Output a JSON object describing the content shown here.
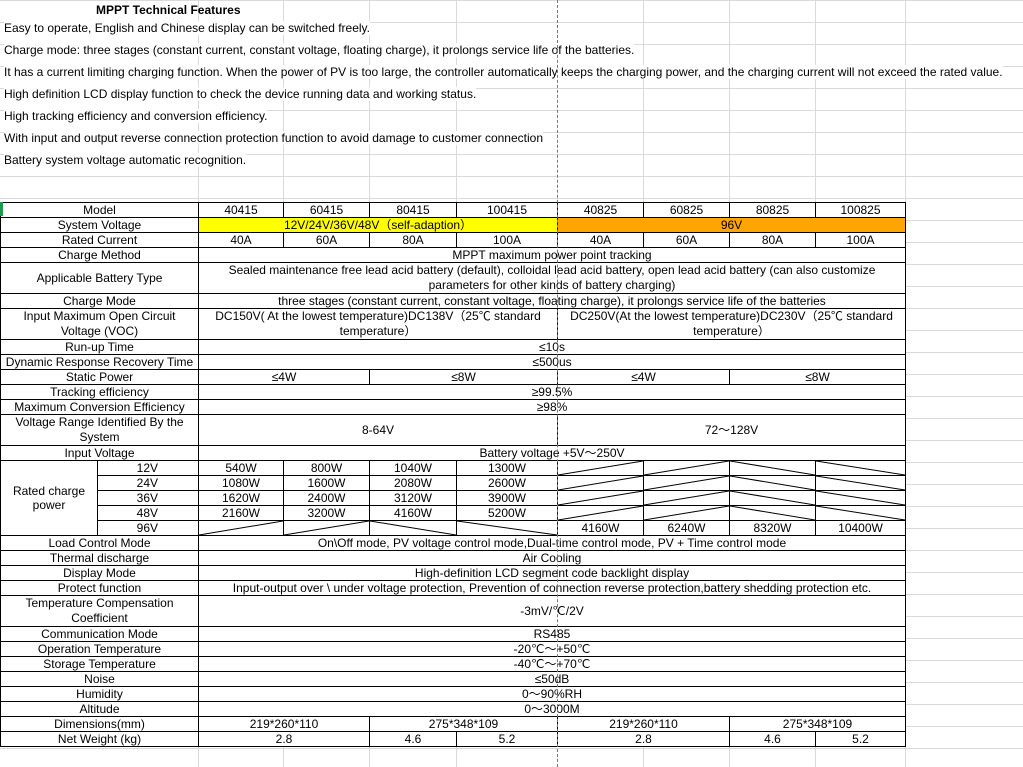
{
  "title": "MPPT Technical Features",
  "intro": [
    "Easy to operate, English and Chinese display can be switched freely.",
    "Charge mode: three stages (constant current, constant voltage, floating charge), it prolongs service life of the batteries.",
    "It has a current limiting charging function. When the power of PV is too large, the controller automatically keeps the charging power, and the charging current will not exceed the rated value.",
    "High definition LCD display function to check the device running data and working status.",
    "High tracking efficiency and conversion efficiency.",
    " With input and output reverse connection protection function to avoid damage to customer connection",
    "Battery system voltage automatic recognition."
  ],
  "colors": {
    "yellow": "#ffff00",
    "orange": "#ffa500"
  },
  "rows": [
    {
      "label": "Model",
      "cells": [
        [
          "40415",
          1
        ],
        [
          "60415",
          1
        ],
        [
          "80415",
          1
        ],
        [
          "100415",
          1
        ],
        [
          "40825",
          1
        ],
        [
          "60825",
          1
        ],
        [
          "80825",
          1
        ],
        [
          "100825",
          1
        ]
      ]
    },
    {
      "label": "System Voltage",
      "cells": [
        [
          "12V/24V/36V/48V（self-adaption）",
          4,
          "yellow"
        ],
        [
          "96V",
          4,
          "orange"
        ]
      ]
    },
    {
      "label": "Rated Current",
      "cells": [
        [
          "40A",
          1
        ],
        [
          "60A",
          1
        ],
        [
          "80A",
          1
        ],
        [
          "100A",
          1
        ],
        [
          "40A",
          1
        ],
        [
          "60A",
          1
        ],
        [
          "80A",
          1
        ],
        [
          "100A",
          1
        ]
      ]
    },
    {
      "label": "Charge Method",
      "cells": [
        [
          "MPPT maximum power point tracking",
          8
        ]
      ]
    },
    {
      "label": "Applicable Battery Type",
      "tall": 2,
      "cells": [
        [
          "Sealed maintenance free lead acid battery (default), colloidal lead acid battery, open lead acid battery (can also customize parameters for other kinds of battery charging)",
          8
        ]
      ]
    },
    {
      "label": "Charge Mode",
      "cells": [
        [
          "three stages (constant current, constant voltage, floating charge), it prolongs service life of the batteries",
          8
        ]
      ]
    },
    {
      "label": "Input Maximum Open Circuit Voltage (VOC)",
      "tall": 2,
      "cells": [
        [
          "DC150V( At the lowest temperature)DC138V（25℃ standard temperature）",
          4
        ],
        [
          "DC250V(At the lowest temperature)DC230V（25℃ standard temperature）",
          4
        ]
      ]
    },
    {
      "label": "Run-up Time",
      "cells": [
        [
          "≤10s",
          8
        ]
      ]
    },
    {
      "label": "Dynamic Response Recovery Time",
      "cells": [
        [
          "≤500us",
          8
        ]
      ]
    },
    {
      "label": "Static Power",
      "cells": [
        [
          "≤4W",
          2
        ],
        [
          "≤8W",
          2
        ],
        [
          "≤4W",
          2
        ],
        [
          "≤8W",
          2
        ]
      ]
    },
    {
      "label": "Tracking efficiency",
      "cells": [
        [
          "≥99.5%",
          8
        ]
      ]
    },
    {
      "label": "Maximum Conversion Efficiency",
      "cells": [
        [
          "≥98%",
          8
        ]
      ]
    },
    {
      "label": "Voltage Range Identified By the System",
      "tall": 2,
      "cells": [
        [
          "8-64V",
          4
        ],
        [
          "72～128V",
          4
        ]
      ]
    },
    {
      "label": "Input Voltage",
      "cells": [
        [
          "Battery voltage +5V～250V",
          8
        ]
      ]
    },
    {
      "label": "Rated charge power",
      "sub": "12V",
      "group": 5,
      "cells": [
        [
          "540W",
          1
        ],
        [
          "800W",
          1
        ],
        [
          "1040W",
          1
        ],
        [
          "1300W",
          1
        ],
        [
          "",
          1,
          "up"
        ],
        [
          "",
          1,
          "up"
        ],
        [
          "",
          1,
          "down"
        ],
        [
          "",
          1,
          "down"
        ]
      ]
    },
    {
      "sub": "24V",
      "cells": [
        [
          "1080W",
          1
        ],
        [
          "1600W",
          1
        ],
        [
          "2080W",
          1
        ],
        [
          "2600W",
          1
        ],
        [
          "",
          1,
          "up"
        ],
        [
          "",
          1,
          "up"
        ],
        [
          "",
          1,
          "down"
        ],
        [
          "",
          1,
          "down"
        ]
      ]
    },
    {
      "sub": "36V",
      "cells": [
        [
          "1620W",
          1
        ],
        [
          "2400W",
          1
        ],
        [
          "3120W",
          1
        ],
        [
          "3900W",
          1
        ],
        [
          "",
          1,
          "up"
        ],
        [
          "",
          1,
          "up"
        ],
        [
          "",
          1,
          "down"
        ],
        [
          "",
          1,
          "down"
        ]
      ]
    },
    {
      "sub": "48V",
      "cells": [
        [
          "2160W",
          1
        ],
        [
          "3200W",
          1
        ],
        [
          "4160W",
          1
        ],
        [
          "5200W",
          1
        ],
        [
          "",
          1,
          "up"
        ],
        [
          "",
          1,
          "up"
        ],
        [
          "",
          1,
          "down"
        ],
        [
          "",
          1,
          "down"
        ]
      ]
    },
    {
      "sub": "96V",
      "cells": [
        [
          "",
          1,
          "up"
        ],
        [
          "",
          1,
          "up"
        ],
        [
          "",
          1,
          "down"
        ],
        [
          "",
          1,
          "down"
        ],
        [
          "4160W",
          1
        ],
        [
          "6240W",
          1
        ],
        [
          "8320W",
          1
        ],
        [
          "10400W",
          1
        ]
      ]
    },
    {
      "label": "Load Control Mode",
      "cells": [
        [
          "On\\Off mode, PV voltage control mode,Dual-time control mode, PV + Time control mode",
          8
        ]
      ]
    },
    {
      "label": "Thermal discharge",
      "cells": [
        [
          "Air Cooling",
          8
        ]
      ]
    },
    {
      "label": "Display Mode",
      "cells": [
        [
          "High-definition LCD segment code backlight display",
          8
        ]
      ]
    },
    {
      "label": "Protect function",
      "cells": [
        [
          "Input-output over \\ under voltage protection, Prevention of connection reverse protection,battery shedding protection etc.",
          8
        ]
      ]
    },
    {
      "label": "Temperature Compensation Coefficient",
      "tall": 2,
      "cells": [
        [
          "-3mV/℃/2V",
          8
        ]
      ]
    },
    {
      "label": "Communication Mode",
      "cells": [
        [
          "RS485",
          8
        ]
      ]
    },
    {
      "label": "Operation Temperature",
      "cells": [
        [
          "-20℃～+50℃",
          8
        ]
      ]
    },
    {
      "label": "Storage Temperature",
      "cells": [
        [
          "-40℃～+70℃",
          8
        ]
      ]
    },
    {
      "label": "Noise",
      "cells": [
        [
          "≤50dB",
          8
        ]
      ]
    },
    {
      "label": "Humidity",
      "cells": [
        [
          "0～90%RH",
          8
        ]
      ]
    },
    {
      "label": "Altitude",
      "cells": [
        [
          "0～3000M",
          8
        ]
      ]
    },
    {
      "label": "Dimensions(mm)",
      "cells": [
        [
          "219*260*110",
          2
        ],
        [
          "275*348*109",
          2
        ],
        [
          "219*260*110",
          2
        ],
        [
          "275*348*109",
          2
        ]
      ]
    },
    {
      "label": "Net Weight (kg)",
      "cells": [
        [
          "2.8",
          2
        ],
        [
          "4.6",
          1
        ],
        [
          "5.2",
          1
        ],
        [
          "2.8",
          2
        ],
        [
          "4.6",
          1
        ],
        [
          "5.2",
          1
        ]
      ]
    }
  ]
}
